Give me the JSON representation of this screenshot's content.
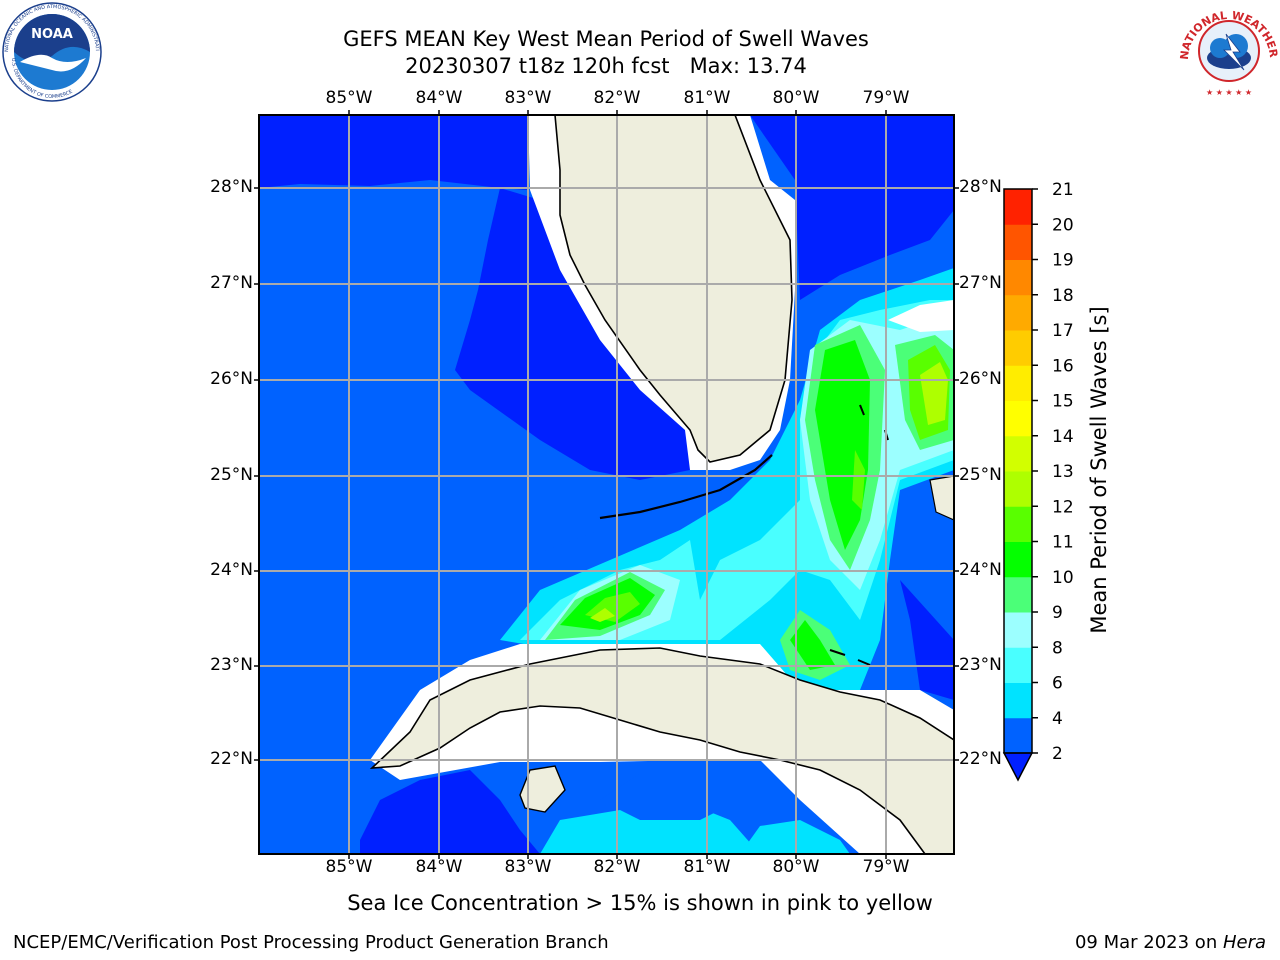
{
  "header": {
    "title_line1": "GEFS MEAN Key West Mean Period of Swell Waves",
    "title_line2": "20230307 t18z 120h fcst   Max: 13.74"
  },
  "logos": {
    "left_text_top": "NATIONAL OCEANIC AND ATMOSPHERIC ADMINISTRATION",
    "left_text_bottom": "U.S. DEPARTMENT OF COMMERCE",
    "left_mark": "NOAA",
    "right_text": "NATIONAL WEATHER SERVICE"
  },
  "map": {
    "lon_labels": [
      "85°W",
      "84°W",
      "83°W",
      "82°W",
      "81°W",
      "80°W",
      "79°W"
    ],
    "lat_labels": [
      "28°N",
      "27°N",
      "26°N",
      "25°N",
      "24°N",
      "23°N",
      "22°N"
    ],
    "extent": {
      "lon": [
        -86.0,
        -78.25
      ],
      "lat": [
        21.05,
        28.75
      ]
    },
    "colors": {
      "land": "#eeeedd",
      "grid": "#aaaaaa",
      "coast": "#000000"
    }
  },
  "colorbar": {
    "label": "Mean Period of Swell Waves [s]",
    "ticks": [
      "2",
      "4",
      "6",
      "8",
      "9",
      "10",
      "11",
      "12",
      "13",
      "14",
      "15",
      "16",
      "17",
      "18",
      "19",
      "20",
      "21"
    ],
    "colors": [
      "#0062ff",
      "#00e3ff",
      "#49ffff",
      "#9cffff",
      "#4bff78",
      "#04ff00",
      "#59ff00",
      "#aeff00",
      "#d2ff00",
      "#ffff00",
      "#ffed00",
      "#ffcc00",
      "#ffaa00",
      "#ff8800",
      "#ff5500",
      "#ff2200",
      "#ff0000"
    ],
    "under_color": "#0020ff"
  },
  "footer": {
    "ice_note": "Sea Ice Concentration > 15% is shown in pink to yellow",
    "left": "NCEP/EMC/Verification Post Processing Product Generation Branch",
    "right_date": "09 Mar 2023 on ",
    "right_host": "Hera"
  }
}
